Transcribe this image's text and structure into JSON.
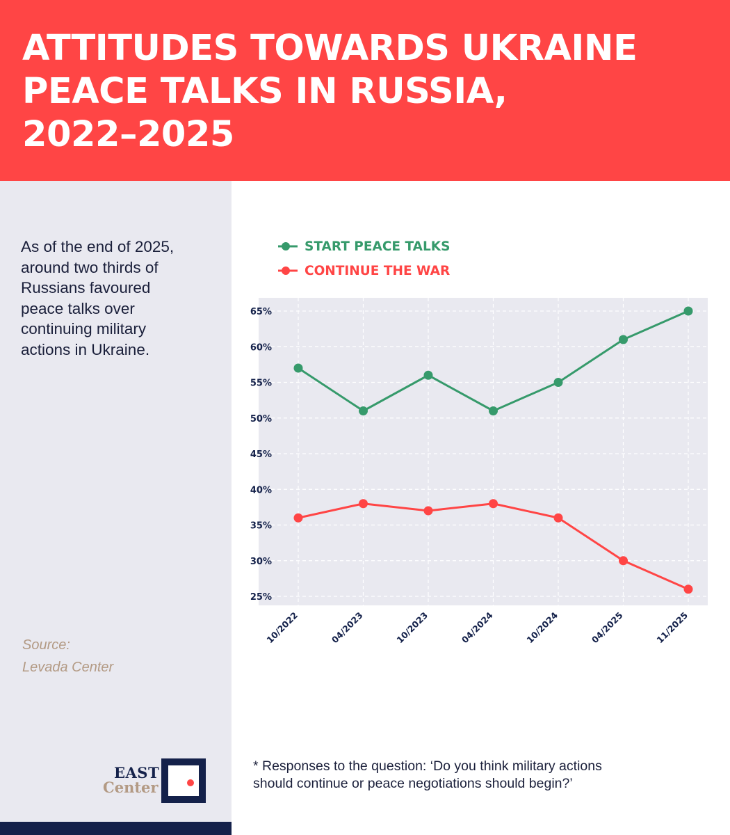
{
  "header": {
    "title_lines": [
      "ATTITUDES TOWARDS UKRAINE",
      "PEACE TALKS IN RUSSIA,",
      "2022–2025"
    ]
  },
  "sidebar": {
    "summary_lines": [
      "As of the end of 2025,",
      "around two thirds of",
      "Russians favoured",
      "peace talks over",
      "continuing military",
      "actions in Ukraine."
    ],
    "source_label": "Source:",
    "source_name": "Levada Center"
  },
  "logo": {
    "line1": "EAST",
    "line2": "Center"
  },
  "footnote": {
    "lines": [
      "* Responses to the question: ‘Do you think military actions",
      "should continue or peace negotiations should begin?’"
    ]
  },
  "colors": {
    "accent": "#ff4545",
    "green": "#369a6b",
    "navy": "#14214a",
    "sidebar_bg": "#e9e9f0",
    "plot_bg": "#e9e9f0",
    "source": "#b39a84"
  },
  "chart_data": {
    "type": "line",
    "categories": [
      "10/2022",
      "04/2023",
      "10/2023",
      "04/2024",
      "10/2024",
      "04/2025",
      "11/2025"
    ],
    "series": [
      {
        "name": "START PEACE TALKS",
        "color": "#369a6b",
        "values": [
          57,
          51,
          56,
          51,
          55,
          61,
          65
        ]
      },
      {
        "name": "CONTINUE THE WAR",
        "color": "#ff4545",
        "values": [
          36,
          38,
          37,
          38,
          36,
          30,
          26
        ]
      }
    ],
    "y_ticks": [
      "65%",
      "60%",
      "55%",
      "50%",
      "45%",
      "40%",
      "35%",
      "30%",
      "25%"
    ],
    "y_tick_values": [
      65,
      60,
      55,
      50,
      45,
      40,
      35,
      30,
      25
    ],
    "ylim": [
      24,
      66
    ],
    "grid": true,
    "legend": "top-left"
  }
}
